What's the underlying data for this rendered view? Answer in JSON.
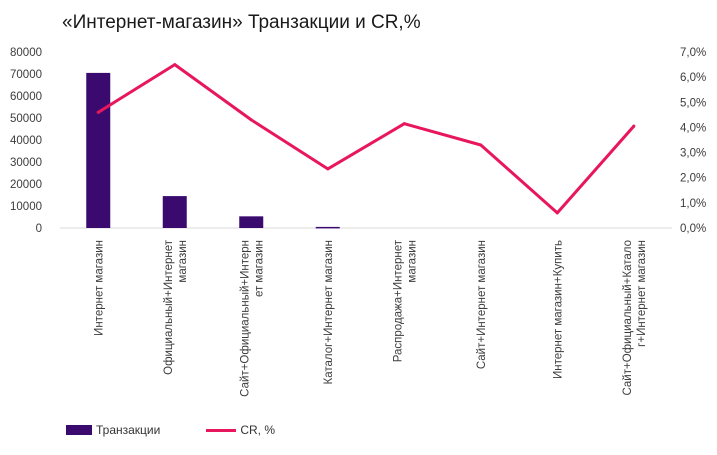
{
  "title": "«Интернет-магазин» Транзакции и CR,%",
  "colors": {
    "bars": "#3a0a6e",
    "line": "#e8175d",
    "axis_text": "#3c3c3c"
  },
  "legend": {
    "bars_label": "Транзакции",
    "line_label": "CR, %"
  },
  "chart_data": {
    "type": "bar+line",
    "title": "«Интернет-магазин» Транзакции и CR,%",
    "categories": [
      [
        "Интернет магазин"
      ],
      [
        "Официальный+Интернет",
        "магазин"
      ],
      [
        "Сайт+Официальный+Интерн",
        "ет магазин"
      ],
      [
        "Каталог+Интернет магазин"
      ],
      [
        "Распродажа+Интернет",
        "магазин"
      ],
      [
        "Сайт+Интернет магазин"
      ],
      [
        "Интернет магазин+Купить"
      ],
      [
        "Сайт+Официальный+Катало",
        "г+Интернет магазин"
      ]
    ],
    "series": [
      {
        "name": "Транзакции",
        "type": "bar",
        "axis": "left",
        "values": [
          70500,
          14500,
          5300,
          500,
          0,
          0,
          0,
          0
        ]
      },
      {
        "name": "CR, %",
        "type": "line",
        "axis": "right",
        "values": [
          4.6,
          6.5,
          4.3,
          2.35,
          4.15,
          3.3,
          0.6,
          4.05
        ]
      }
    ],
    "y_left": {
      "min": 0,
      "max": 80000,
      "ticks": [
        "0",
        "10000",
        "20000",
        "30000",
        "40000",
        "50000",
        "60000",
        "70000",
        "80000"
      ]
    },
    "y_right": {
      "min": 0,
      "max": 7,
      "ticks": [
        "0,0%",
        "1,0%",
        "2,0%",
        "3,0%",
        "4,0%",
        "5,0%",
        "6,0%",
        "7,0%"
      ]
    },
    "legend_position": "bottom-left",
    "grid": false
  }
}
